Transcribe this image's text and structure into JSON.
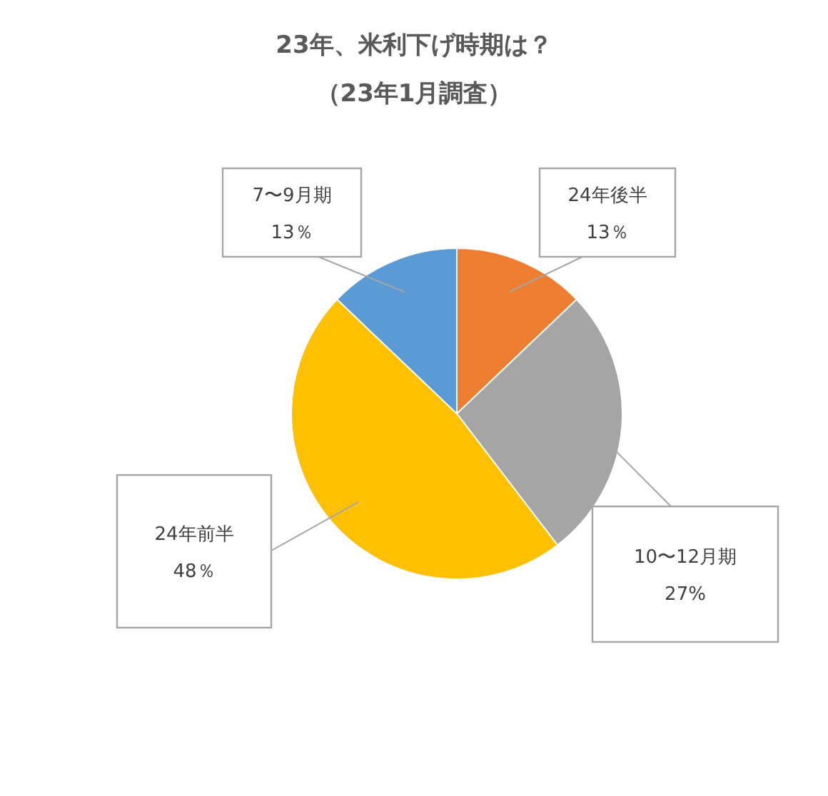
{
  "chart_data": {
    "type": "pie",
    "title": "23年、米利下げ時期は？",
    "subtitle": "（23年1月調査）",
    "categories": [
      "24年後半",
      "10〜12月期",
      "24年前半",
      "7〜9月期"
    ],
    "values": [
      13,
      27,
      48,
      13
    ],
    "value_labels": [
      "13％",
      "27%",
      "48％",
      "13％"
    ],
    "colors": [
      "#ed7d31",
      "#a5a5a5",
      "#ffc000",
      "#5b9bd5"
    ],
    "legend": false
  }
}
